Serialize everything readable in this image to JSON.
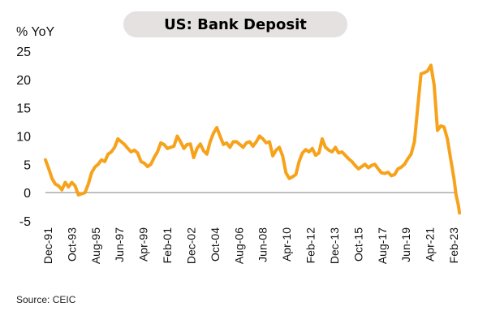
{
  "chart_data": {
    "type": "line",
    "title": "US: Bank Deposit",
    "ylabel": "% YoY",
    "xlabel": "",
    "ylim": [
      -5,
      25
    ],
    "yticks": [
      25,
      20,
      15,
      10,
      5,
      0,
      -5
    ],
    "grid": false,
    "legend": "none",
    "xrange": [
      "1991-12",
      "2023-02"
    ],
    "xtick_labels": [
      "Dec-91",
      "Oct-93",
      "Aug-95",
      "Jun-97",
      "Apr-99",
      "Feb-01",
      "Dec-02",
      "Oct-04",
      "Aug-06",
      "Jun-08",
      "Apr-10",
      "Feb-12",
      "Dec-13",
      "Oct-15",
      "Aug-17",
      "Jun-19",
      "Apr-21",
      "Feb-23"
    ],
    "zero_line": true,
    "series": [
      {
        "color": "#F7A21B",
        "points": [
          [
            "1991-12",
            5.8
          ],
          [
            "1992-03",
            4.2
          ],
          [
            "1992-06",
            2.5
          ],
          [
            "1992-09",
            1.5
          ],
          [
            "1992-12",
            1.2
          ],
          [
            "1993-03",
            0.5
          ],
          [
            "1993-06",
            1.8
          ],
          [
            "1993-09",
            1.0
          ],
          [
            "1993-12",
            1.8
          ],
          [
            "1994-03",
            1.2
          ],
          [
            "1994-06",
            -0.4
          ],
          [
            "1994-09",
            -0.2
          ],
          [
            "1994-12",
            0.0
          ],
          [
            "1995-03",
            1.5
          ],
          [
            "1995-06",
            3.5
          ],
          [
            "1995-09",
            4.5
          ],
          [
            "1995-12",
            5.0
          ],
          [
            "1996-03",
            5.8
          ],
          [
            "1996-06",
            5.5
          ],
          [
            "1996-09",
            6.8
          ],
          [
            "1996-12",
            7.2
          ],
          [
            "1997-03",
            8.0
          ],
          [
            "1997-06",
            9.5
          ],
          [
            "1997-09",
            9.0
          ],
          [
            "1997-12",
            8.5
          ],
          [
            "1998-03",
            7.8
          ],
          [
            "1998-06",
            7.2
          ],
          [
            "1998-09",
            7.5
          ],
          [
            "1998-12",
            7.0
          ],
          [
            "1999-03",
            5.5
          ],
          [
            "1999-06",
            5.2
          ],
          [
            "1999-09",
            4.6
          ],
          [
            "1999-12",
            5.0
          ],
          [
            "2000-03",
            6.2
          ],
          [
            "2000-06",
            7.2
          ],
          [
            "2000-09",
            8.8
          ],
          [
            "2000-12",
            8.5
          ],
          [
            "2001-03",
            7.8
          ],
          [
            "2001-06",
            8.0
          ],
          [
            "2001-09",
            8.2
          ],
          [
            "2001-12",
            10.0
          ],
          [
            "2002-03",
            9.0
          ],
          [
            "2002-06",
            7.8
          ],
          [
            "2002-09",
            8.5
          ],
          [
            "2002-12",
            8.6
          ],
          [
            "2003-03",
            6.2
          ],
          [
            "2003-06",
            7.8
          ],
          [
            "2003-09",
            8.6
          ],
          [
            "2003-12",
            7.4
          ],
          [
            "2004-03",
            6.8
          ],
          [
            "2004-06",
            9.0
          ],
          [
            "2004-09",
            10.5
          ],
          [
            "2004-12",
            11.5
          ],
          [
            "2005-03",
            10.0
          ],
          [
            "2005-06",
            8.5
          ],
          [
            "2005-09",
            8.8
          ],
          [
            "2005-12",
            8.0
          ],
          [
            "2006-03",
            9.0
          ],
          [
            "2006-06",
            9.0
          ],
          [
            "2006-09",
            8.5
          ],
          [
            "2006-12",
            8.0
          ],
          [
            "2007-03",
            8.8
          ],
          [
            "2007-06",
            9.0
          ],
          [
            "2007-09",
            8.2
          ],
          [
            "2007-12",
            9.0
          ],
          [
            "2008-03",
            10.0
          ],
          [
            "2008-06",
            9.5
          ],
          [
            "2008-09",
            8.8
          ],
          [
            "2008-12",
            9.0
          ],
          [
            "2009-03",
            6.5
          ],
          [
            "2009-06",
            7.5
          ],
          [
            "2009-09",
            8.0
          ],
          [
            "2009-12",
            6.5
          ],
          [
            "2010-03",
            3.5
          ],
          [
            "2010-06",
            2.5
          ],
          [
            "2010-09",
            2.8
          ],
          [
            "2010-12",
            3.2
          ],
          [
            "2011-03",
            5.5
          ],
          [
            "2011-06",
            7.0
          ],
          [
            "2011-09",
            7.6
          ],
          [
            "2011-12",
            7.2
          ],
          [
            "2012-03",
            7.8
          ],
          [
            "2012-06",
            6.6
          ],
          [
            "2012-09",
            7.0
          ],
          [
            "2012-12",
            9.5
          ],
          [
            "2013-03",
            8.0
          ],
          [
            "2013-06",
            7.5
          ],
          [
            "2013-09",
            7.2
          ],
          [
            "2013-12",
            8.0
          ],
          [
            "2014-03",
            7.0
          ],
          [
            "2014-06",
            7.2
          ],
          [
            "2014-09",
            6.6
          ],
          [
            "2014-12",
            6.0
          ],
          [
            "2015-03",
            5.5
          ],
          [
            "2015-06",
            4.8
          ],
          [
            "2015-09",
            4.2
          ],
          [
            "2015-12",
            4.6
          ],
          [
            "2016-03",
            5.0
          ],
          [
            "2016-06",
            4.4
          ],
          [
            "2016-09",
            4.8
          ],
          [
            "2016-12",
            5.0
          ],
          [
            "2017-03",
            4.2
          ],
          [
            "2017-06",
            3.5
          ],
          [
            "2017-09",
            3.4
          ],
          [
            "2017-12",
            3.6
          ],
          [
            "2018-03",
            3.0
          ],
          [
            "2018-06",
            3.2
          ],
          [
            "2018-09",
            4.2
          ],
          [
            "2018-12",
            4.5
          ],
          [
            "2019-03",
            5.0
          ],
          [
            "2019-06",
            6.0
          ],
          [
            "2019-09",
            6.8
          ],
          [
            "2019-12",
            9.0
          ],
          [
            "2020-03",
            15.0
          ],
          [
            "2020-06",
            21.0
          ],
          [
            "2020-09",
            21.2
          ],
          [
            "2020-12",
            21.5
          ],
          [
            "2021-03",
            22.5
          ],
          [
            "2021-06",
            19.0
          ],
          [
            "2021-09",
            11.0
          ],
          [
            "2021-12",
            11.8
          ],
          [
            "2022-03",
            11.6
          ],
          [
            "2022-06",
            9.5
          ],
          [
            "2022-09",
            6.0
          ],
          [
            "2022-12",
            2.5
          ],
          [
            "2023-02",
            -0.5
          ],
          [
            "2023-04",
            -2.2
          ],
          [
            "2023-05",
            -3.6
          ]
        ]
      }
    ]
  },
  "footer": {
    "source": "Source: CEIC"
  }
}
